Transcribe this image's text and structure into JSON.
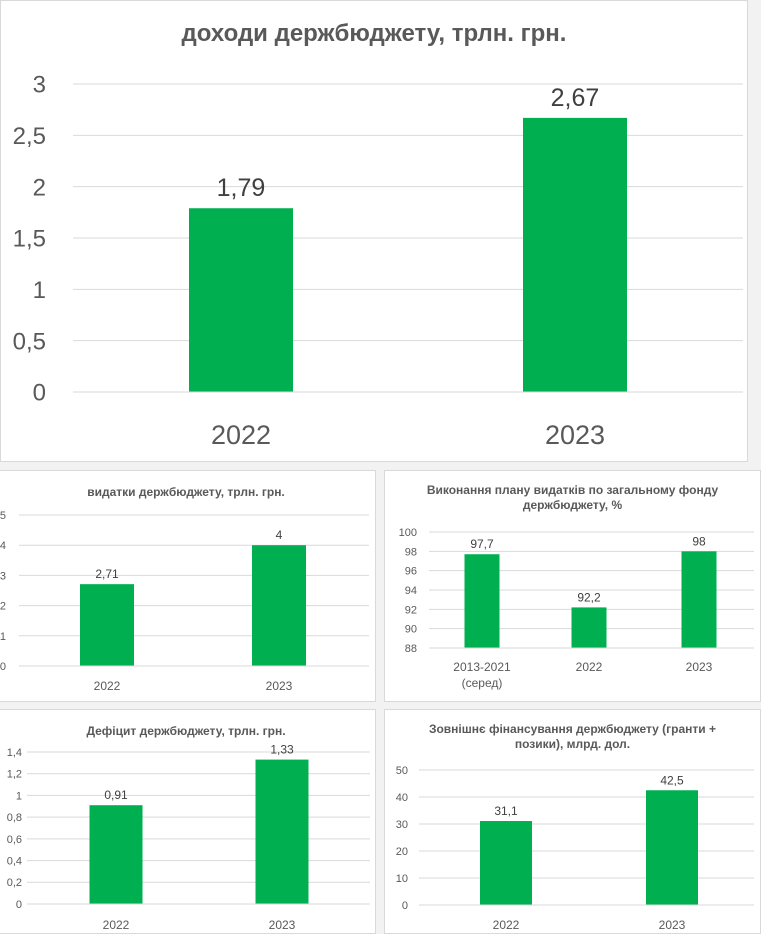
{
  "chart_data": [
    {
      "type": "bar",
      "title": "доходи держбюджету, трлн. грн.",
      "categories": [
        "2022",
        "2023"
      ],
      "values": [
        1.79,
        2.67
      ],
      "value_labels": [
        "1,79",
        "2,67"
      ],
      "ylim": [
        0,
        3
      ],
      "yticks": [
        0,
        0.5,
        1,
        1.5,
        2,
        2.5,
        3
      ],
      "ytick_labels": [
        "0",
        "0,5",
        "1",
        "1,5",
        "2",
        "2,5",
        "3"
      ],
      "grid": true,
      "bar_color": "#00b050"
    },
    {
      "type": "bar",
      "title": "видатки держбюджету, трлн. грн.",
      "categories": [
        "2022",
        "2023"
      ],
      "values": [
        2.71,
        4
      ],
      "value_labels": [
        "2,71",
        "4"
      ],
      "ylim": [
        0,
        5
      ],
      "yticks": [
        0,
        1,
        2,
        3,
        4,
        5
      ],
      "ytick_labels": [
        "0",
        "1",
        "2",
        "3",
        "4",
        "5"
      ],
      "grid": true,
      "bar_color": "#00b050"
    },
    {
      "type": "bar",
      "title": "Виконання плану видатків по загальному фонду держбюджету, %",
      "categories": [
        "2013-2021 (серед)",
        "2022",
        "2023"
      ],
      "values": [
        97.7,
        92.2,
        98
      ],
      "value_labels": [
        "97,7",
        "92,2",
        "98"
      ],
      "ylim": [
        88,
        100
      ],
      "yticks": [
        88,
        90,
        92,
        94,
        96,
        98,
        100
      ],
      "ytick_labels": [
        "88",
        "90",
        "92",
        "94",
        "96",
        "98",
        "100"
      ],
      "grid": true,
      "bar_color": "#00b050"
    },
    {
      "type": "bar",
      "title": "Дефіцит держбюджету, трлн. грн.",
      "categories": [
        "2022",
        "2023"
      ],
      "values": [
        0.91,
        1.33
      ],
      "value_labels": [
        "0,91",
        "1,33"
      ],
      "ylim": [
        0,
        1.4
      ],
      "yticks": [
        0,
        0.2,
        0.4,
        0.6,
        0.8,
        1,
        1.2,
        1.4
      ],
      "ytick_labels": [
        "0",
        "0,2",
        "0,4",
        "0,6",
        "0,8",
        "1",
        "1,2",
        "1,4"
      ],
      "grid": true,
      "bar_color": "#00b050"
    },
    {
      "type": "bar",
      "title": "Зовнішнє фінансування держбюджету (гранти + позики), млрд. дол.",
      "categories": [
        "2022",
        "2023"
      ],
      "values": [
        31.1,
        42.5
      ],
      "value_labels": [
        "31,1",
        "42,5"
      ],
      "ylim": [
        0,
        50
      ],
      "yticks": [
        0,
        10,
        20,
        30,
        40,
        50
      ],
      "ytick_labels": [
        "0",
        "10",
        "20",
        "30",
        "40",
        "50"
      ],
      "grid": true,
      "bar_color": "#00b050"
    }
  ]
}
